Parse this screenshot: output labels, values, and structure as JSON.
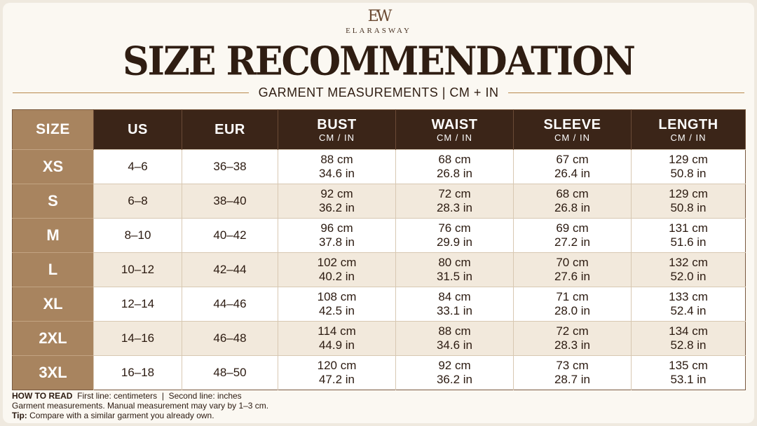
{
  "brand": {
    "mark": "EW",
    "name": "ELARASWAY"
  },
  "title": "SIZE RECOMMENDATION",
  "subtitle": "GARMENT MEASUREMENTS | CM + IN",
  "colors": {
    "header_dark": "#3b2518",
    "size_column": "#a8845f",
    "accent_rule": "#b8894f",
    "stripe": "#f2e9dc"
  },
  "table": {
    "headers": [
      {
        "label": "SIZE",
        "unit": ""
      },
      {
        "label": "US",
        "unit": ""
      },
      {
        "label": "EUR",
        "unit": ""
      },
      {
        "label": "BUST",
        "unit": "CM / IN"
      },
      {
        "label": "WAIST",
        "unit": "CM / IN"
      },
      {
        "label": "SLEEVE",
        "unit": "CM / IN"
      },
      {
        "label": "LENGTH",
        "unit": "CM / IN"
      }
    ],
    "rows": [
      {
        "size": "XS",
        "us": "4–6",
        "eur": "36–38",
        "bust": [
          "88 cm",
          "34.6 in"
        ],
        "waist": [
          "68 cm",
          "26.8 in"
        ],
        "sleeve": [
          "67 cm",
          "26.4 in"
        ],
        "length": [
          "129 cm",
          "50.8 in"
        ]
      },
      {
        "size": "S",
        "us": "6–8",
        "eur": "38–40",
        "bust": [
          "92 cm",
          "36.2 in"
        ],
        "waist": [
          "72 cm",
          "28.3 in"
        ],
        "sleeve": [
          "68 cm",
          "26.8 in"
        ],
        "length": [
          "129 cm",
          "50.8 in"
        ]
      },
      {
        "size": "M",
        "us": "8–10",
        "eur": "40–42",
        "bust": [
          "96 cm",
          "37.8 in"
        ],
        "waist": [
          "76 cm",
          "29.9 in"
        ],
        "sleeve": [
          "69 cm",
          "27.2 in"
        ],
        "length": [
          "131 cm",
          "51.6 in"
        ]
      },
      {
        "size": "L",
        "us": "10–12",
        "eur": "42–44",
        "bust": [
          "102 cm",
          "40.2 in"
        ],
        "waist": [
          "80 cm",
          "31.5 in"
        ],
        "sleeve": [
          "70 cm",
          "27.6 in"
        ],
        "length": [
          "132 cm",
          "52.0 in"
        ]
      },
      {
        "size": "XL",
        "us": "12–14",
        "eur": "44–46",
        "bust": [
          "108 cm",
          "42.5 in"
        ],
        "waist": [
          "84 cm",
          "33.1 in"
        ],
        "sleeve": [
          "71 cm",
          "28.0 in"
        ],
        "length": [
          "133 cm",
          "52.4 in"
        ]
      },
      {
        "size": "2XL",
        "us": "14–16",
        "eur": "46–48",
        "bust": [
          "114 cm",
          "44.9 in"
        ],
        "waist": [
          "88 cm",
          "34.6 in"
        ],
        "sleeve": [
          "72 cm",
          "28.3 in"
        ],
        "length": [
          "134 cm",
          "52.8 in"
        ]
      },
      {
        "size": "3XL",
        "us": "16–18",
        "eur": "48–50",
        "bust": [
          "120 cm",
          "47.2 in"
        ],
        "waist": [
          "92 cm",
          "36.2 in"
        ],
        "sleeve": [
          "73 cm",
          "28.7 in"
        ],
        "length": [
          "135 cm",
          "53.1 in"
        ]
      }
    ]
  },
  "notes": {
    "how_to_read_label": "HOW TO READ",
    "how_to_read_text": "First line: centimeters  |  Second line: inches",
    "line2": "Garment measurements. Manual measurement may vary by 1–3 cm.",
    "tip_label": "Tip:",
    "tip_text": "Compare with a similar garment you already own."
  }
}
